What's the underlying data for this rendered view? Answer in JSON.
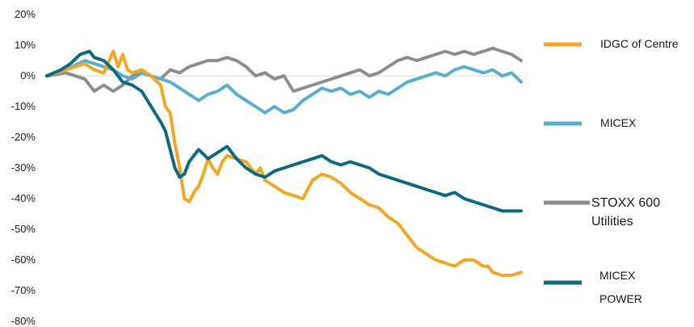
{
  "chart_data": {
    "type": "line",
    "title": "",
    "xlabel": "",
    "ylabel": "",
    "ylim": [
      -80,
      20
    ],
    "yticks": [
      20,
      10,
      0,
      -10,
      -20,
      -30,
      -40,
      -50,
      -60,
      -70,
      -80
    ],
    "ytick_labels": [
      "20%",
      "10%",
      "0%",
      "-10%",
      "-20%",
      "-30%",
      "-40%",
      "-50%",
      "-60%",
      "-70%",
      "-80%"
    ],
    "x_index_range": [
      0,
      100
    ],
    "grid": false,
    "legend_position": "right",
    "series": [
      {
        "name": "IDGC of Centre",
        "color": "#F5A623",
        "x": [
          0,
          4,
          8,
          10,
          12,
          14,
          15,
          16,
          17,
          18,
          20,
          22,
          24,
          25,
          26,
          27,
          28,
          29,
          30,
          31,
          32,
          33,
          34,
          35,
          36,
          37,
          38,
          40,
          42,
          44,
          45,
          46,
          47,
          48,
          50,
          52,
          54,
          55,
          56,
          58,
          60,
          62,
          64,
          66,
          68,
          70,
          72,
          74,
          76,
          78,
          80,
          82,
          84,
          86,
          88,
          90,
          91,
          92,
          93,
          94,
          96,
          98,
          100
        ],
        "values": [
          0,
          2,
          4,
          2,
          1,
          8,
          3,
          7,
          2,
          1,
          2,
          0,
          -3,
          -10,
          -12,
          -22,
          -30,
          -40,
          -41,
          -38,
          -36,
          -32,
          -27,
          -30,
          -32,
          -28,
          -26,
          -27,
          -28,
          -32,
          -30,
          -34,
          -35,
          -36,
          -38,
          -39,
          -40,
          -37,
          -34,
          -32,
          -33,
          -35,
          -38,
          -40,
          -42,
          -43,
          -46,
          -48,
          -52,
          -56,
          -58,
          -60,
          -61,
          -62,
          -60,
          -60,
          -61,
          -62,
          -62,
          -64,
          -65,
          -65,
          -64
        ]
      },
      {
        "name": "MICEX",
        "color": "#5AAED1",
        "x": [
          0,
          4,
          8,
          10,
          12,
          14,
          16,
          18,
          20,
          22,
          24,
          26,
          28,
          30,
          32,
          34,
          36,
          38,
          40,
          42,
          44,
          46,
          48,
          50,
          52,
          54,
          56,
          58,
          60,
          62,
          64,
          66,
          68,
          70,
          72,
          74,
          76,
          78,
          80,
          82,
          84,
          86,
          88,
          90,
          92,
          94,
          96,
          98,
          100
        ],
        "values": [
          0,
          2,
          5,
          4,
          3,
          2,
          0,
          -1,
          1,
          0,
          -1,
          -2,
          -4,
          -6,
          -8,
          -6,
          -5,
          -3,
          -6,
          -8,
          -10,
          -12,
          -10,
          -12,
          -11,
          -8,
          -6,
          -4,
          -5,
          -4,
          -6,
          -5,
          -7,
          -5,
          -6,
          -4,
          -2,
          -1,
          0,
          1,
          0,
          2,
          3,
          2,
          1,
          2,
          0,
          1,
          -2
        ]
      },
      {
        "name": "STOXX 600 Utilities",
        "color": "#8E8E8E",
        "x": [
          0,
          4,
          6,
          8,
          10,
          12,
          14,
          16,
          18,
          20,
          22,
          24,
          26,
          28,
          30,
          32,
          34,
          36,
          38,
          40,
          42,
          44,
          46,
          48,
          50,
          52,
          54,
          56,
          58,
          60,
          62,
          64,
          66,
          68,
          70,
          72,
          74,
          76,
          78,
          80,
          82,
          84,
          86,
          88,
          90,
          92,
          94,
          96,
          98,
          100
        ],
        "values": [
          0,
          1,
          0,
          -1,
          -5,
          -3,
          -5,
          -3,
          0,
          1,
          0,
          -1,
          2,
          1,
          3,
          4,
          5,
          5,
          6,
          5,
          3,
          0,
          1,
          -1,
          0,
          -5,
          -4,
          -3,
          -2,
          -1,
          0,
          1,
          2,
          0,
          1,
          3,
          5,
          6,
          5,
          6,
          7,
          8,
          7,
          8,
          7,
          8,
          9,
          8,
          7,
          5
        ]
      },
      {
        "name": "MICEX POWER",
        "color": "#0E6B82",
        "x": [
          0,
          3,
          5,
          7,
          9,
          10,
          12,
          14,
          16,
          18,
          20,
          22,
          24,
          25,
          26,
          27,
          28,
          29,
          30,
          32,
          34,
          36,
          38,
          40,
          42,
          44,
          46,
          48,
          50,
          52,
          54,
          56,
          58,
          60,
          62,
          64,
          66,
          68,
          70,
          72,
          74,
          76,
          78,
          80,
          82,
          84,
          86,
          88,
          90,
          92,
          94,
          96,
          98,
          100
        ],
        "values": [
          0,
          2,
          4,
          7,
          8,
          6,
          5,
          2,
          -2,
          -3,
          -5,
          -10,
          -15,
          -18,
          -24,
          -30,
          -33,
          -32,
          -28,
          -24,
          -27,
          -25,
          -23,
          -27,
          -30,
          -32,
          -33,
          -31,
          -30,
          -29,
          -28,
          -27,
          -26,
          -28,
          -29,
          -28,
          -29,
          -30,
          -32,
          -33,
          -34,
          -35,
          -36,
          -37,
          -38,
          -39,
          -38,
          -40,
          -41,
          -42,
          -43,
          -44,
          -44,
          -44
        ]
      }
    ],
    "legend": [
      {
        "label": "IDGC of Centre",
        "color": "#F5A623"
      },
      {
        "label": "MICEX",
        "color": "#5AAED1"
      },
      {
        "label": "STOXX 600",
        "label2": "Utilities",
        "color": "#8E8E8E"
      },
      {
        "label": "MICEX",
        "label2": "POWER",
        "color": "#0E6B82"
      }
    ]
  }
}
